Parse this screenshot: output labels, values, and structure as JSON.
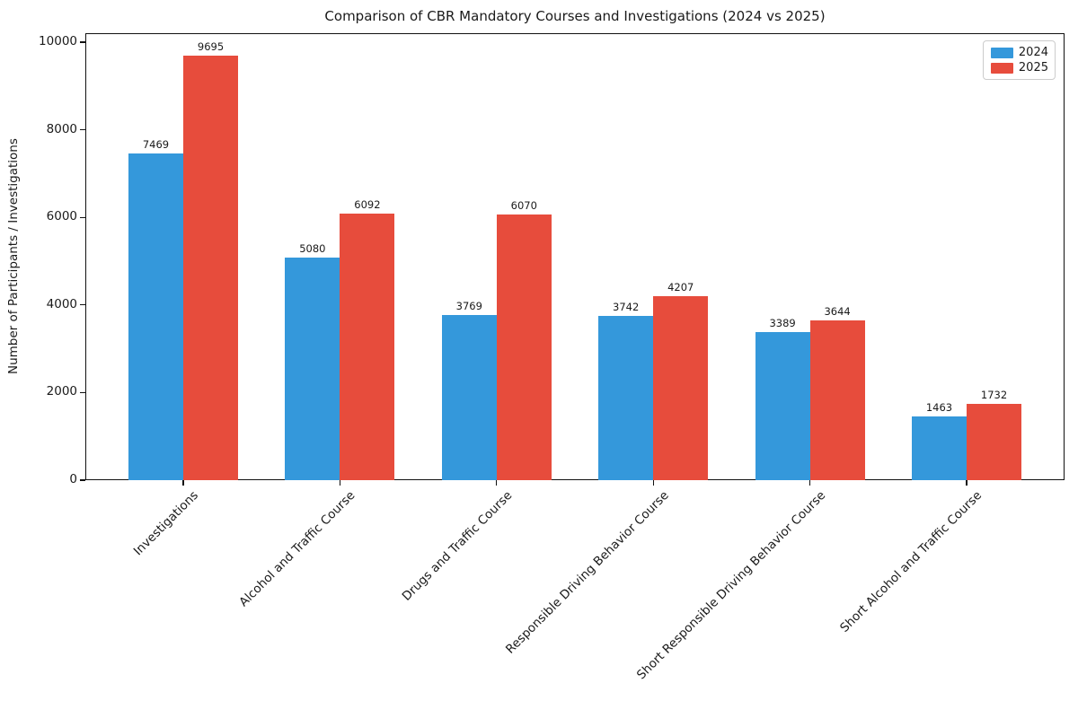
{
  "chart_data": {
    "type": "bar",
    "title": "Comparison of CBR Mandatory Courses and Investigations (2024 vs 2025)",
    "xlabel": "",
    "ylabel": "Number of Participants / Investigations",
    "categories": [
      "Investigations",
      "Alcohol and Traffic Course",
      "Drugs and Traffic Course",
      "Responsible Driving Behavior Course",
      "Short Responsible Driving Behavior Course",
      "Short Alcohol and Traffic Course"
    ],
    "series": [
      {
        "name": "2024",
        "color": "#3498db",
        "values": [
          7469,
          5080,
          3769,
          3742,
          3389,
          1463
        ]
      },
      {
        "name": "2025",
        "color": "#e74c3c",
        "values": [
          9695,
          6092,
          6070,
          4207,
          3644,
          1732
        ]
      }
    ],
    "ylim": [
      0,
      10000
    ],
    "yticks": [
      0,
      2000,
      4000,
      6000,
      8000,
      10000
    ],
    "grid": false,
    "legend_position": "upper right",
    "bar_value_labels_shown": true
  }
}
